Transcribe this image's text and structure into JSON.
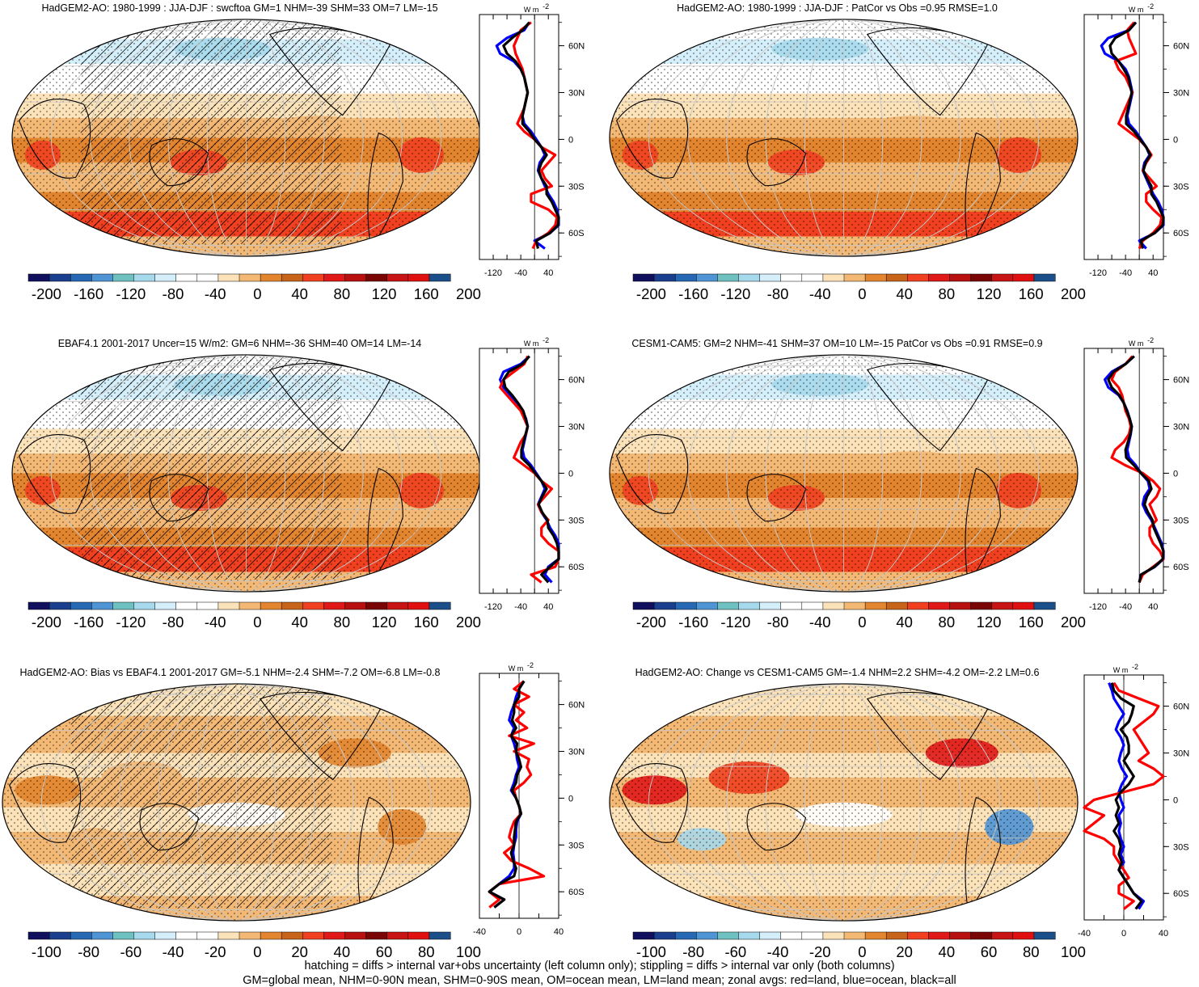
{
  "colors": {
    "levels": [
      "#10105e",
      "#1a3f8e",
      "#2668b4",
      "#4f94d4",
      "#6fc1c1",
      "#a6d9ec",
      "#d4eefa",
      "#ffffff",
      "#ffffff",
      "#fbe2b8",
      "#f3b874",
      "#e2852e",
      "#c86419",
      "#f04020",
      "#e01818",
      "#b80f0f",
      "#7a0505",
      "#c81414",
      "#e01010",
      "#1b4f8a"
    ],
    "land_line": "#000000",
    "zonal_land": "#ff0000",
    "zonal_ocean": "#0000ff",
    "zonal_all": "#000000"
  },
  "units": "W m",
  "units_exp": "-2",
  "footer": [
    "hatching = diffs > internal var+obs uncertainty (left column only); stippling = diffs > internal var only (both columns)",
    "GM=global mean, NHM=0-90N mean, SHM=0-90S mean, OM=ocean mean, LM=land mean; zonal avgs: red=land, blue=ocean, black=all"
  ],
  "chart_data": [
    {
      "type": "heatmap",
      "title": "HadGEM2-AO: 1980-1999 : JJA-DJF : swcftoa GM=1 NHM=-39 SHM=33 OM=7 LM=-15",
      "colorbar_ticks": [
        "-200",
        "-160",
        "-120",
        "-80",
        "-40",
        "0",
        "40",
        "80",
        "120",
        "160",
        "200"
      ],
      "zonal_xticks": [
        "-120",
        "-40",
        "40"
      ],
      "zonal_yticks": [
        "60N",
        "30N",
        "0",
        "30S",
        "60S"
      ],
      "xlim": [
        -160,
        70
      ],
      "hatching": true,
      "zonal": {
        "lat": [
          75,
          70,
          65,
          60,
          55,
          50,
          45,
          40,
          35,
          30,
          25,
          20,
          15,
          10,
          5,
          0,
          -5,
          -10,
          -15,
          -20,
          -25,
          -30,
          -35,
          -40,
          -45,
          -50,
          -55,
          -60,
          -65,
          -70
        ],
        "land": [
          -10,
          -40,
          -50,
          -60,
          -55,
          -45,
          -35,
          -30,
          -25,
          -20,
          -25,
          -30,
          -40,
          -50,
          -30,
          0,
          20,
          60,
          40,
          20,
          30,
          50,
          -10,
          -10,
          40,
          65,
          60,
          40,
          5,
          -5
        ],
        "ocean": [
          -15,
          -30,
          -80,
          -110,
          -100,
          -60,
          -40,
          -30,
          -25,
          -20,
          -25,
          -30,
          -35,
          -30,
          -10,
          5,
          20,
          30,
          15,
          10,
          20,
          30,
          40,
          55,
          65,
          75,
          70,
          45,
          0,
          30
        ],
        "all": [
          -15,
          -35,
          -65,
          -90,
          -80,
          -55,
          -40,
          -30,
          -25,
          -20,
          -25,
          -30,
          -35,
          -35,
          -15,
          0,
          20,
          35,
          20,
          12,
          20,
          35,
          35,
          50,
          60,
          72,
          68,
          45,
          5,
          10
        ]
      }
    },
    {
      "type": "heatmap",
      "title": "HadGEM2-AO: 1980-1999 : JJA-DJF : PatCor vs Obs =0.95 RMSE=1.0",
      "colorbar_ticks": [
        "-200",
        "-160",
        "-120",
        "-80",
        "-40",
        "0",
        "40",
        "80",
        "120",
        "160",
        "200"
      ],
      "zonal_xticks": [
        "-120",
        "-40",
        "40"
      ],
      "zonal_yticks": [
        "60N",
        "30N",
        "0",
        "30S",
        "60S"
      ],
      "xlim": [
        -160,
        70
      ],
      "hatching": false,
      "zonal": {
        "lat": [
          75,
          70,
          65,
          60,
          55,
          50,
          45,
          40,
          35,
          30,
          25,
          20,
          15,
          10,
          5,
          0,
          -5,
          -10,
          -15,
          -20,
          -25,
          -30,
          -35,
          -40,
          -45,
          -50,
          -55,
          -60,
          -65,
          -70
        ],
        "land": [
          -15,
          -35,
          -30,
          -20,
          -10,
          -70,
          -60,
          -40,
          -30,
          -20,
          -30,
          -40,
          -50,
          -60,
          -30,
          0,
          20,
          35,
          20,
          10,
          30,
          50,
          20,
          20,
          40,
          65,
          60,
          40,
          10,
          0
        ],
        "ocean": [
          -10,
          -30,
          -90,
          -110,
          -100,
          -60,
          -40,
          -30,
          -25,
          -20,
          -25,
          -30,
          -35,
          -30,
          -10,
          5,
          20,
          30,
          15,
          10,
          20,
          30,
          40,
          55,
          65,
          75,
          70,
          45,
          0,
          20
        ],
        "all": [
          -10,
          -30,
          -70,
          -85,
          -80,
          -60,
          -45,
          -32,
          -27,
          -22,
          -27,
          -32,
          -38,
          -38,
          -15,
          2,
          20,
          32,
          18,
          12,
          22,
          35,
          35,
          50,
          60,
          72,
          68,
          45,
          5,
          10
        ]
      }
    },
    {
      "type": "heatmap",
      "title": "EBAF4.1 2001-2017 Uncer=15 W/m2: GM=6 NHM=-36 SHM=40 OM=14 LM=-14",
      "colorbar_ticks": [
        "-200",
        "-160",
        "-120",
        "-80",
        "-40",
        "0",
        "40",
        "80",
        "120",
        "160",
        "200"
      ],
      "zonal_xticks": [
        "-120",
        "-40",
        "40"
      ],
      "zonal_yticks": [
        "60N",
        "30N",
        "0",
        "30S",
        "60S"
      ],
      "xlim": [
        -160,
        70
      ],
      "hatching": true,
      "zonal": {
        "lat": [
          75,
          70,
          65,
          60,
          55,
          50,
          45,
          40,
          35,
          30,
          25,
          20,
          15,
          10,
          5,
          0,
          -5,
          -10,
          -15,
          -20,
          -25,
          -30,
          -35,
          -40,
          -45,
          -50,
          -55,
          -60,
          -65,
          -70
        ],
        "land": [
          -20,
          -30,
          -60,
          -90,
          -100,
          -80,
          -60,
          -40,
          -30,
          -20,
          -25,
          -40,
          -50,
          -60,
          -30,
          0,
          20,
          50,
          30,
          10,
          20,
          40,
          20,
          20,
          40,
          70,
          80,
          60,
          -10,
          20
        ],
        "ocean": [
          -15,
          -40,
          -90,
          -100,
          -90,
          -70,
          -50,
          -35,
          -25,
          -20,
          -25,
          -30,
          -35,
          -30,
          -10,
          5,
          20,
          30,
          20,
          10,
          20,
          35,
          45,
          60,
          70,
          80,
          75,
          40,
          30,
          50
        ],
        "all": [
          -15,
          -35,
          -75,
          -90,
          -85,
          -65,
          -48,
          -33,
          -26,
          -20,
          -26,
          -32,
          -38,
          -38,
          -15,
          2,
          20,
          35,
          22,
          12,
          22,
          37,
          40,
          55,
          65,
          77,
          74,
          45,
          20,
          40
        ]
      }
    },
    {
      "type": "heatmap",
      "title": "CESM1-CAM5: GM=2 NHM=-41 SHM=37 OM=10 LM=-15 PatCor vs Obs =0.91 RMSE=0.9",
      "colorbar_ticks": [
        "-200",
        "-160",
        "-120",
        "-80",
        "-40",
        "0",
        "40",
        "80",
        "120",
        "160",
        "200"
      ],
      "zonal_xticks": [
        "-120",
        "-40",
        "40"
      ],
      "zonal_yticks": [
        "60N",
        "30N",
        "0",
        "30S",
        "60S"
      ],
      "xlim": [
        -160,
        70
      ],
      "hatching": false,
      "zonal": {
        "lat": [
          75,
          70,
          65,
          60,
          55,
          50,
          45,
          40,
          35,
          30,
          25,
          20,
          15,
          10,
          5,
          0,
          -5,
          -10,
          -15,
          -20,
          -25,
          -30,
          -35,
          -40,
          -45,
          -50,
          -55,
          -60,
          -65,
          -70
        ],
        "land": [
          -20,
          -40,
          -70,
          -80,
          -60,
          -50,
          -45,
          -40,
          -30,
          -25,
          -30,
          -45,
          -70,
          -80,
          -40,
          10,
          40,
          60,
          50,
          30,
          40,
          50,
          30,
          30,
          40,
          60,
          70,
          40,
          10,
          0
        ],
        "ocean": [
          -15,
          -40,
          -80,
          -100,
          -90,
          -60,
          -45,
          -35,
          -28,
          -22,
          -25,
          -30,
          -35,
          -30,
          -10,
          5,
          25,
          30,
          15,
          10,
          20,
          35,
          45,
          55,
          65,
          75,
          70,
          45,
          5,
          0
        ],
        "all": [
          -15,
          -40,
          -75,
          -90,
          -80,
          -58,
          -45,
          -36,
          -28,
          -22,
          -26,
          -33,
          -40,
          -38,
          -15,
          5,
          28,
          35,
          22,
          15,
          25,
          38,
          42,
          52,
          62,
          72,
          68,
          44,
          5,
          0
        ]
      }
    },
    {
      "type": "heatmap",
      "title": "HadGEM2-AO: Bias vs EBAF4.1 2001-2017 GM=-5.1 NHM=-2.4 SHM=-7.2 OM=-6.8 LM=-0.8",
      "colorbar_ticks": [
        "-100",
        "-80",
        "-60",
        "-40",
        "-20",
        "0",
        "20",
        "40",
        "60",
        "80",
        "100"
      ],
      "zonal_xticks": [
        "-40",
        "0",
        "40"
      ],
      "zonal_yticks": [
        "60N",
        "30N",
        "0",
        "30S",
        "60S"
      ],
      "xlim": [
        -40,
        40
      ],
      "hatching": true,
      "zonal": {
        "lat": [
          75,
          70,
          65,
          60,
          55,
          50,
          45,
          40,
          35,
          30,
          25,
          20,
          15,
          10,
          5,
          0,
          -5,
          -10,
          -15,
          -20,
          -25,
          -30,
          -35,
          -40,
          -45,
          -50,
          -55,
          -60,
          -65,
          -70
        ],
        "land": [
          5,
          -5,
          10,
          -5,
          5,
          -3,
          8,
          -10,
          15,
          -5,
          10,
          8,
          12,
          5,
          -5,
          -3,
          0,
          2,
          -5,
          -8,
          -10,
          -5,
          -15,
          -8,
          10,
          25,
          -20,
          -30,
          -20,
          -30
        ],
        "ocean": [
          5,
          0,
          -3,
          -5,
          -8,
          -10,
          -5,
          -8,
          -5,
          -3,
          -2,
          0,
          -3,
          -5,
          -8,
          -3,
          0,
          2,
          -2,
          -3,
          -3,
          -5,
          -6,
          -5,
          -5,
          -10,
          -20,
          -30,
          -15,
          -25
        ],
        "all": [
          5,
          0,
          0,
          -5,
          -5,
          -7,
          -3,
          -8,
          -2,
          -3,
          0,
          2,
          -2,
          -3,
          -7,
          -3,
          0,
          2,
          -3,
          -4,
          -5,
          -5,
          -8,
          -6,
          -3,
          -5,
          -20,
          -30,
          -15,
          -25
        ]
      }
    },
    {
      "type": "heatmap",
      "title": "HadGEM2-AO: Change vs CESM1-CAM5 GM=-1.4 NHM=2.2 SHM=-4.2 OM=-2.2 LM=0.6",
      "colorbar_ticks": [
        "-100",
        "-80",
        "-60",
        "-40",
        "-20",
        "0",
        "20",
        "40",
        "60",
        "80",
        "100"
      ],
      "zonal_xticks": [
        "-40",
        "0",
        "40"
      ],
      "zonal_yticks": [
        "60N",
        "30N",
        "0",
        "30S",
        "60S"
      ],
      "xlim": [
        -40,
        40
      ],
      "hatching": false,
      "zonal": {
        "lat": [
          75,
          70,
          65,
          60,
          55,
          50,
          45,
          40,
          35,
          30,
          25,
          20,
          15,
          10,
          5,
          0,
          -5,
          -10,
          -15,
          -20,
          -25,
          -30,
          -35,
          -40,
          -45,
          -50,
          -55,
          -60,
          -65,
          -70
        ],
        "land": [
          -10,
          -5,
          15,
          35,
          30,
          20,
          10,
          15,
          20,
          25,
          15,
          30,
          45,
          30,
          0,
          -30,
          -40,
          -20,
          -30,
          -40,
          -20,
          -10,
          -10,
          -5,
          0,
          5,
          -5,
          -5,
          10,
          0
        ],
        "ocean": [
          -15,
          -12,
          -10,
          -5,
          0,
          -5,
          -8,
          -3,
          0,
          -3,
          -5,
          -2,
          3,
          -2,
          -5,
          -3,
          0,
          -5,
          -3,
          -5,
          -3,
          0,
          -3,
          0,
          -5,
          0,
          5,
          10,
          20,
          15
        ],
        "all": [
          -12,
          -10,
          -3,
          10,
          8,
          5,
          -3,
          3,
          5,
          5,
          0,
          5,
          10,
          5,
          -3,
          -8,
          -5,
          -8,
          -5,
          -10,
          -5,
          -3,
          -5,
          -2,
          -5,
          0,
          5,
          10,
          18,
          12
        ]
      }
    }
  ]
}
